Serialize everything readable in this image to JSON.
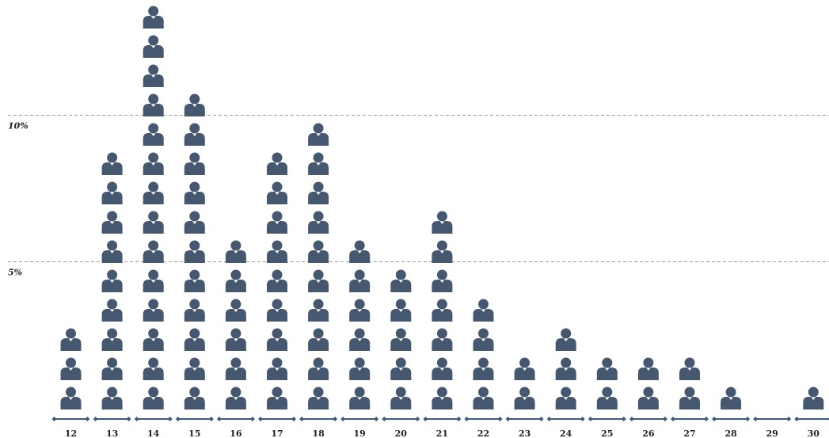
{
  "chart_data": {
    "type": "bar",
    "categories": [
      "12",
      "13",
      "14",
      "15",
      "16",
      "17",
      "18",
      "19",
      "20",
      "21",
      "22",
      "23",
      "24",
      "25",
      "26",
      "27",
      "28",
      "29",
      "30"
    ],
    "values": [
      3,
      9,
      14,
      11,
      6,
      9,
      10,
      6,
      5,
      7,
      4,
      2,
      3,
      2,
      2,
      2,
      1,
      0,
      1
    ],
    "unit_value": 1,
    "yticks": [
      {
        "value": 5,
        "label": "5%"
      },
      {
        "value": 10,
        "label": "10%"
      }
    ],
    "ylim": [
      0,
      14.5
    ],
    "grid": "dashed horizontal at y ticks",
    "colors": {
      "icon": "#465870",
      "axis": "#3f5a7a",
      "grid": "#9a9a9a"
    },
    "icon": "person-icon",
    "title": "",
    "xlabel": "",
    "ylabel": ""
  }
}
